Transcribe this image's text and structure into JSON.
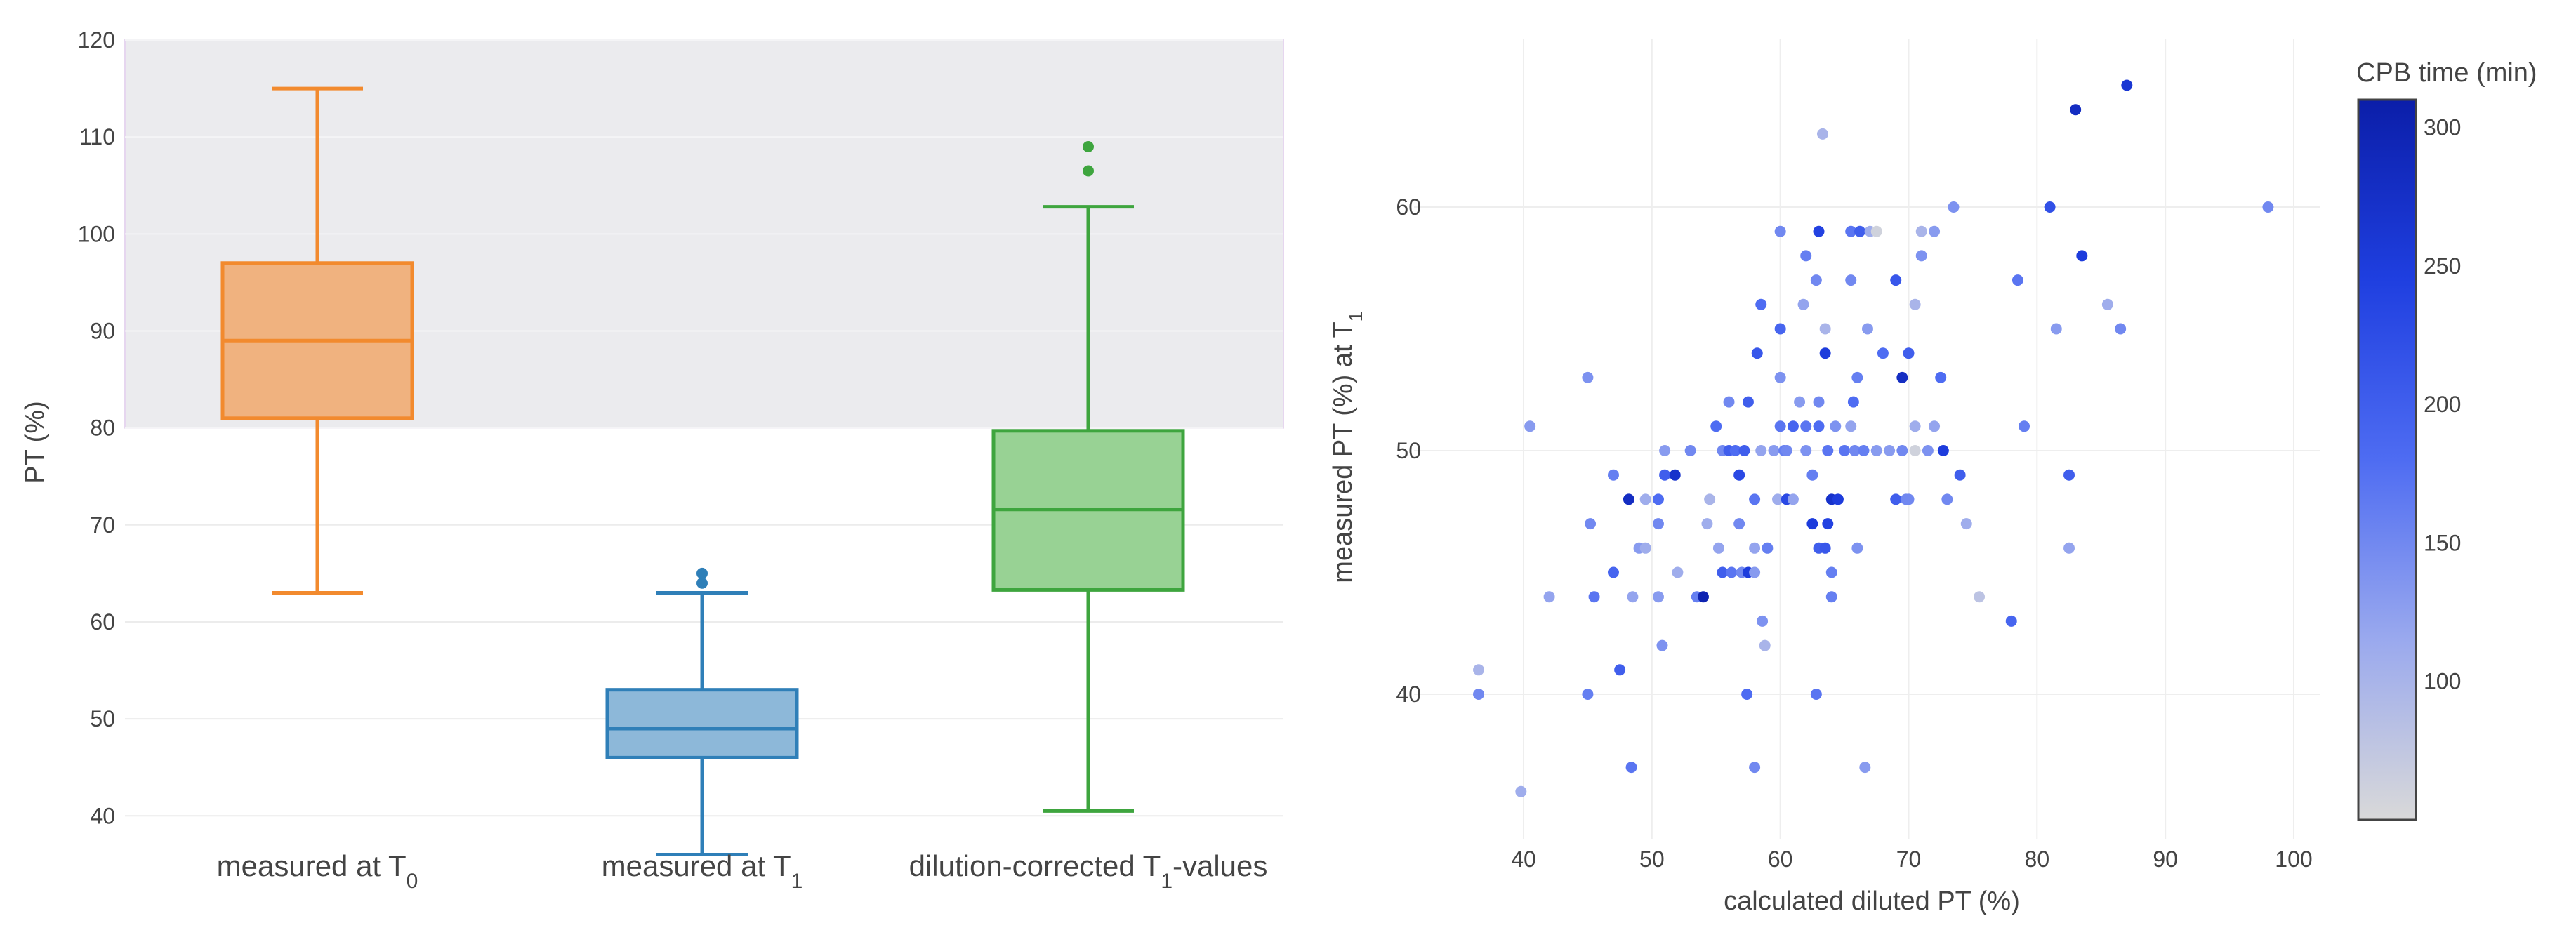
{
  "chart_data": [
    {
      "type": "box",
      "ylabel": "PT (%)",
      "ylim": [
        33,
        120
      ],
      "yticks": [
        40,
        50,
        60,
        70,
        80,
        90,
        100,
        110,
        120
      ],
      "shaded_band": [
        80,
        120
      ],
      "shaded_band_color": "#ebebee",
      "shaded_band_border": "#e6d6ef",
      "categories": [
        {
          "label": "measured at T",
          "sub": "0",
          "suffix": "",
          "color": "#f28a2e",
          "fill": "#f0b27f",
          "whisker_low": 63,
          "q1": 81,
          "median": 89,
          "q3": 97,
          "whisker_high": 115,
          "outliers": []
        },
        {
          "label": "measured at T",
          "sub": "1",
          "suffix": "",
          "color": "#2f7fb8",
          "fill": "#8db8d9",
          "whisker_low": 36,
          "q1": 46,
          "median": 49,
          "q3": 53,
          "whisker_high": 63,
          "outliers": [
            64,
            65
          ]
        },
        {
          "label": "dilution-corrected T",
          "sub": "1",
          "suffix": "-values",
          "color": "#3ea53e",
          "fill": "#98d294",
          "whisker_low": 40.5,
          "q1": 63.3,
          "median": 71.6,
          "q3": 79.7,
          "whisker_high": 102.8,
          "outliers": [
            106.5,
            109
          ]
        }
      ]
    },
    {
      "type": "scatter",
      "xlabel": "calculated diluted PT (%)",
      "ylabel_prefix": "measured PT (%) at T",
      "ylabel_sub": "1",
      "xlim": [
        34,
        103
      ],
      "ylim": [
        34.5,
        67.5
      ],
      "xticks": [
        40,
        50,
        60,
        70,
        80,
        90,
        100
      ],
      "yticks": [
        40,
        50,
        60
      ],
      "colorbar": {
        "title": "CPB time (min)",
        "range": [
          50,
          310
        ],
        "ticks": [
          100,
          150,
          200,
          250,
          300
        ],
        "colors": [
          "#d9d9d9",
          "#9aa9ee",
          "#4e6cf2",
          "#1f3fe0",
          "#0b1ea9"
        ]
      },
      "points": [
        [
          36.5,
          41,
          100
        ],
        [
          36.5,
          40,
          150
        ],
        [
          39.8,
          36,
          110
        ],
        [
          40.5,
          51,
          130
        ],
        [
          42,
          44,
          120
        ],
        [
          45,
          53,
          140
        ],
        [
          45.2,
          47,
          150
        ],
        [
          45,
          40,
          160
        ],
        [
          45.5,
          44,
          170
        ],
        [
          47,
          49,
          160
        ],
        [
          47,
          45,
          190
        ],
        [
          47.5,
          41,
          200
        ],
        [
          48.2,
          48,
          280
        ],
        [
          48.4,
          37,
          170
        ],
        [
          48.5,
          44,
          120
        ],
        [
          49,
          46,
          130
        ],
        [
          49.5,
          48,
          110
        ],
        [
          49.5,
          46,
          110
        ],
        [
          50.5,
          48,
          180
        ],
        [
          50.5,
          47,
          150
        ],
        [
          50.5,
          44,
          130
        ],
        [
          50.8,
          42,
          140
        ],
        [
          51,
          50,
          130
        ],
        [
          51,
          49,
          200
        ],
        [
          51.8,
          49,
          270
        ],
        [
          52,
          45,
          110
        ],
        [
          53,
          50,
          150
        ],
        [
          53.5,
          44,
          160
        ],
        [
          54,
          44,
          300
        ],
        [
          54.3,
          47,
          110
        ],
        [
          54.5,
          48,
          100
        ],
        [
          55,
          51,
          180
        ],
        [
          55.2,
          46,
          120
        ],
        [
          55.5,
          45,
          200
        ],
        [
          55.5,
          50,
          150
        ],
        [
          56,
          50,
          200
        ],
        [
          56,
          52,
          150
        ],
        [
          56.2,
          45,
          170
        ],
        [
          56.5,
          50,
          180
        ],
        [
          56.8,
          49,
          230
        ],
        [
          56.8,
          47,
          150
        ],
        [
          57,
          45,
          150
        ],
        [
          57.2,
          50,
          200
        ],
        [
          57.4,
          40,
          180
        ],
        [
          57.5,
          45,
          250
        ],
        [
          57.5,
          52,
          200
        ],
        [
          58,
          48,
          170
        ],
        [
          58,
          46,
          120
        ],
        [
          58,
          45,
          130
        ],
        [
          58,
          37,
          150
        ],
        [
          58.2,
          54,
          210
        ],
        [
          58.5,
          50,
          120
        ],
        [
          58.5,
          56,
          180
        ],
        [
          58.6,
          43,
          140
        ],
        [
          58.8,
          42,
          100
        ],
        [
          59,
          46,
          160
        ],
        [
          59.5,
          50,
          130
        ],
        [
          59.8,
          48,
          110
        ],
        [
          60,
          55,
          190
        ],
        [
          60,
          53,
          140
        ],
        [
          60,
          59,
          150
        ],
        [
          60,
          51,
          170
        ],
        [
          60.3,
          50,
          160
        ],
        [
          60.5,
          48,
          230
        ],
        [
          60.5,
          50,
          150
        ],
        [
          61,
          48,
          120
        ],
        [
          61,
          51,
          190
        ],
        [
          61.5,
          52,
          130
        ],
        [
          61.8,
          56,
          120
        ],
        [
          62,
          58,
          160
        ],
        [
          62,
          50,
          140
        ],
        [
          62,
          51,
          170
        ],
        [
          62.5,
          49,
          160
        ],
        [
          62.5,
          47,
          250
        ],
        [
          62.8,
          57,
          150
        ],
        [
          62.8,
          40,
          170
        ],
        [
          63,
          46,
          200
        ],
        [
          63,
          59,
          240
        ],
        [
          63,
          51,
          180
        ],
        [
          63,
          52,
          150
        ],
        [
          63.3,
          63,
          100
        ],
        [
          63.5,
          54,
          250
        ],
        [
          63.5,
          46,
          210
        ],
        [
          63.5,
          55,
          100
        ],
        [
          63.7,
          47,
          240
        ],
        [
          63.7,
          50,
          170
        ],
        [
          64,
          45,
          160
        ],
        [
          64,
          48,
          270
        ],
        [
          64,
          44,
          160
        ],
        [
          64.3,
          51,
          140
        ],
        [
          64.5,
          48,
          250
        ],
        [
          65,
          50,
          170
        ],
        [
          65.5,
          51,
          120
        ],
        [
          65.5,
          59,
          170
        ],
        [
          65.5,
          57,
          150
        ],
        [
          65.7,
          52,
          180
        ],
        [
          65.8,
          50,
          150
        ],
        [
          66,
          53,
          160
        ],
        [
          66,
          46,
          140
        ],
        [
          66.2,
          59,
          200
        ],
        [
          66.5,
          50,
          160
        ],
        [
          66.6,
          37,
          130
        ],
        [
          66.8,
          55,
          130
        ],
        [
          67,
          59,
          110
        ],
        [
          67.5,
          59,
          60
        ],
        [
          67.5,
          50,
          130
        ],
        [
          68,
          54,
          180
        ],
        [
          68.5,
          50,
          130
        ],
        [
          69,
          48,
          200
        ],
        [
          69,
          57,
          210
        ],
        [
          69.5,
          50,
          150
        ],
        [
          69.5,
          53,
          280
        ],
        [
          69.8,
          48,
          150
        ],
        [
          70,
          54,
          200
        ],
        [
          70,
          48,
          150
        ],
        [
          70.5,
          51,
          110
        ],
        [
          70.5,
          56,
          100
        ],
        [
          70.5,
          50,
          60
        ],
        [
          71,
          59,
          100
        ],
        [
          71,
          58,
          140
        ],
        [
          71.5,
          50,
          140
        ],
        [
          72,
          51,
          120
        ],
        [
          72,
          59,
          130
        ],
        [
          72.5,
          53,
          180
        ],
        [
          72.7,
          50,
          250
        ],
        [
          73,
          48,
          150
        ],
        [
          73.5,
          60,
          140
        ],
        [
          74,
          49,
          200
        ],
        [
          74.5,
          47,
          110
        ],
        [
          75.5,
          44,
          80
        ],
        [
          78,
          43,
          190
        ],
        [
          78.5,
          57,
          170
        ],
        [
          79,
          51,
          160
        ],
        [
          81,
          60,
          220
        ],
        [
          81.5,
          55,
          130
        ],
        [
          82.5,
          49,
          200
        ],
        [
          82.5,
          46,
          120
        ],
        [
          83,
          64,
          280
        ],
        [
          83.5,
          58,
          250
        ],
        [
          85.5,
          56,
          110
        ],
        [
          86.5,
          55,
          150
        ],
        [
          87,
          65,
          260
        ],
        [
          98,
          60,
          150
        ]
      ]
    }
  ]
}
